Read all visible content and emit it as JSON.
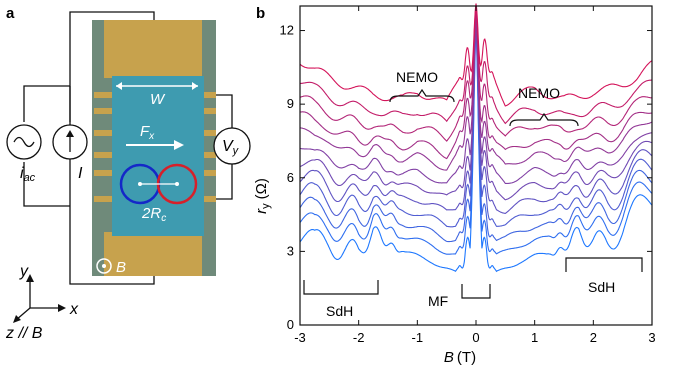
{
  "panel_a": {
    "label": "a",
    "labels": {
      "width": "W",
      "force": "F",
      "force_sub": "x",
      "diameter": "2R",
      "diameter_sub": "c",
      "field": "B",
      "current_src": "i",
      "current_src_sub": "ac",
      "current": "I",
      "voltage": "V",
      "voltage_sub": "y"
    },
    "axes": {
      "y": "y",
      "x": "x",
      "z": "z // B"
    },
    "colors": {
      "channel": "#3e9bb0",
      "contact": "#c7a24d",
      "substrate": "#6f8a7a",
      "orbit_left": "#1428c8",
      "orbit_right": "#d6202a"
    }
  },
  "panel_b": {
    "label": "b",
    "annotations": {
      "nemo_left": "NEMO",
      "nemo_right": "NEMO",
      "sdh_left": "SdH",
      "sdh_right": "SdH",
      "mf": "MF"
    }
  },
  "chart_data": {
    "type": "line",
    "xlabel_main": "B",
    "xlabel_unit": "(T)",
    "ylabel_main": "r",
    "ylabel_sub": "y",
    "ylabel_unit": "(Ω)",
    "xlim": [
      -3,
      3
    ],
    "ylim": [
      0,
      13
    ],
    "xticks": [
      -3,
      -2,
      -1,
      0,
      1,
      2,
      3
    ],
    "xtick_labels": [
      "-3",
      "-2",
      "-1",
      "0",
      "1",
      "2",
      "3"
    ],
    "yticks": [
      0,
      3,
      6,
      9,
      12
    ],
    "ytick_labels": [
      "0",
      "3",
      "6",
      "9",
      "12"
    ],
    "grid": false,
    "n_curves": 12,
    "color_top": "#d4145a",
    "color_bottom": "#1e78ff",
    "curve_offsets": [
      10.8,
      10.0,
      9.3,
      8.6,
      8.0,
      7.3,
      6.7,
      6.1,
      5.5,
      4.9,
      4.3,
      3.6
    ],
    "x": [
      -3.0,
      -2.75,
      -2.5,
      -2.25,
      -2.0,
      -1.75,
      -1.5,
      -1.25,
      -1.0,
      -0.75,
      -0.5,
      -0.35,
      -0.2,
      -0.1,
      0.0,
      0.1,
      0.2,
      0.35,
      0.5,
      0.75,
      1.0,
      1.25,
      1.5,
      1.75,
      2.0,
      2.25,
      2.5,
      2.75,
      3.0
    ],
    "top_curve": [
      10.8,
      10.4,
      10.1,
      9.8,
      9.6,
      9.4,
      9.3,
      9.2,
      9.5,
      9.3,
      9.0,
      9.8,
      10.6,
      11.2,
      11.9,
      11.2,
      10.6,
      9.8,
      9.1,
      9.4,
      9.6,
      9.4,
      9.2,
      9.3,
      9.5,
      9.6,
      9.8,
      10.1,
      10.6
    ],
    "bottom_curve": [
      3.6,
      3.1,
      3.3,
      3.2,
      3.0,
      3.7,
      3.4,
      3.0,
      2.8,
      2.6,
      2.3,
      2.1,
      2.6,
      3.6,
      11.5,
      3.6,
      2.6,
      2.1,
      2.3,
      2.6,
      2.8,
      2.9,
      3.2,
      3.7,
      3.4,
      3.5,
      3.9,
      4.5,
      5.1
    ]
  }
}
